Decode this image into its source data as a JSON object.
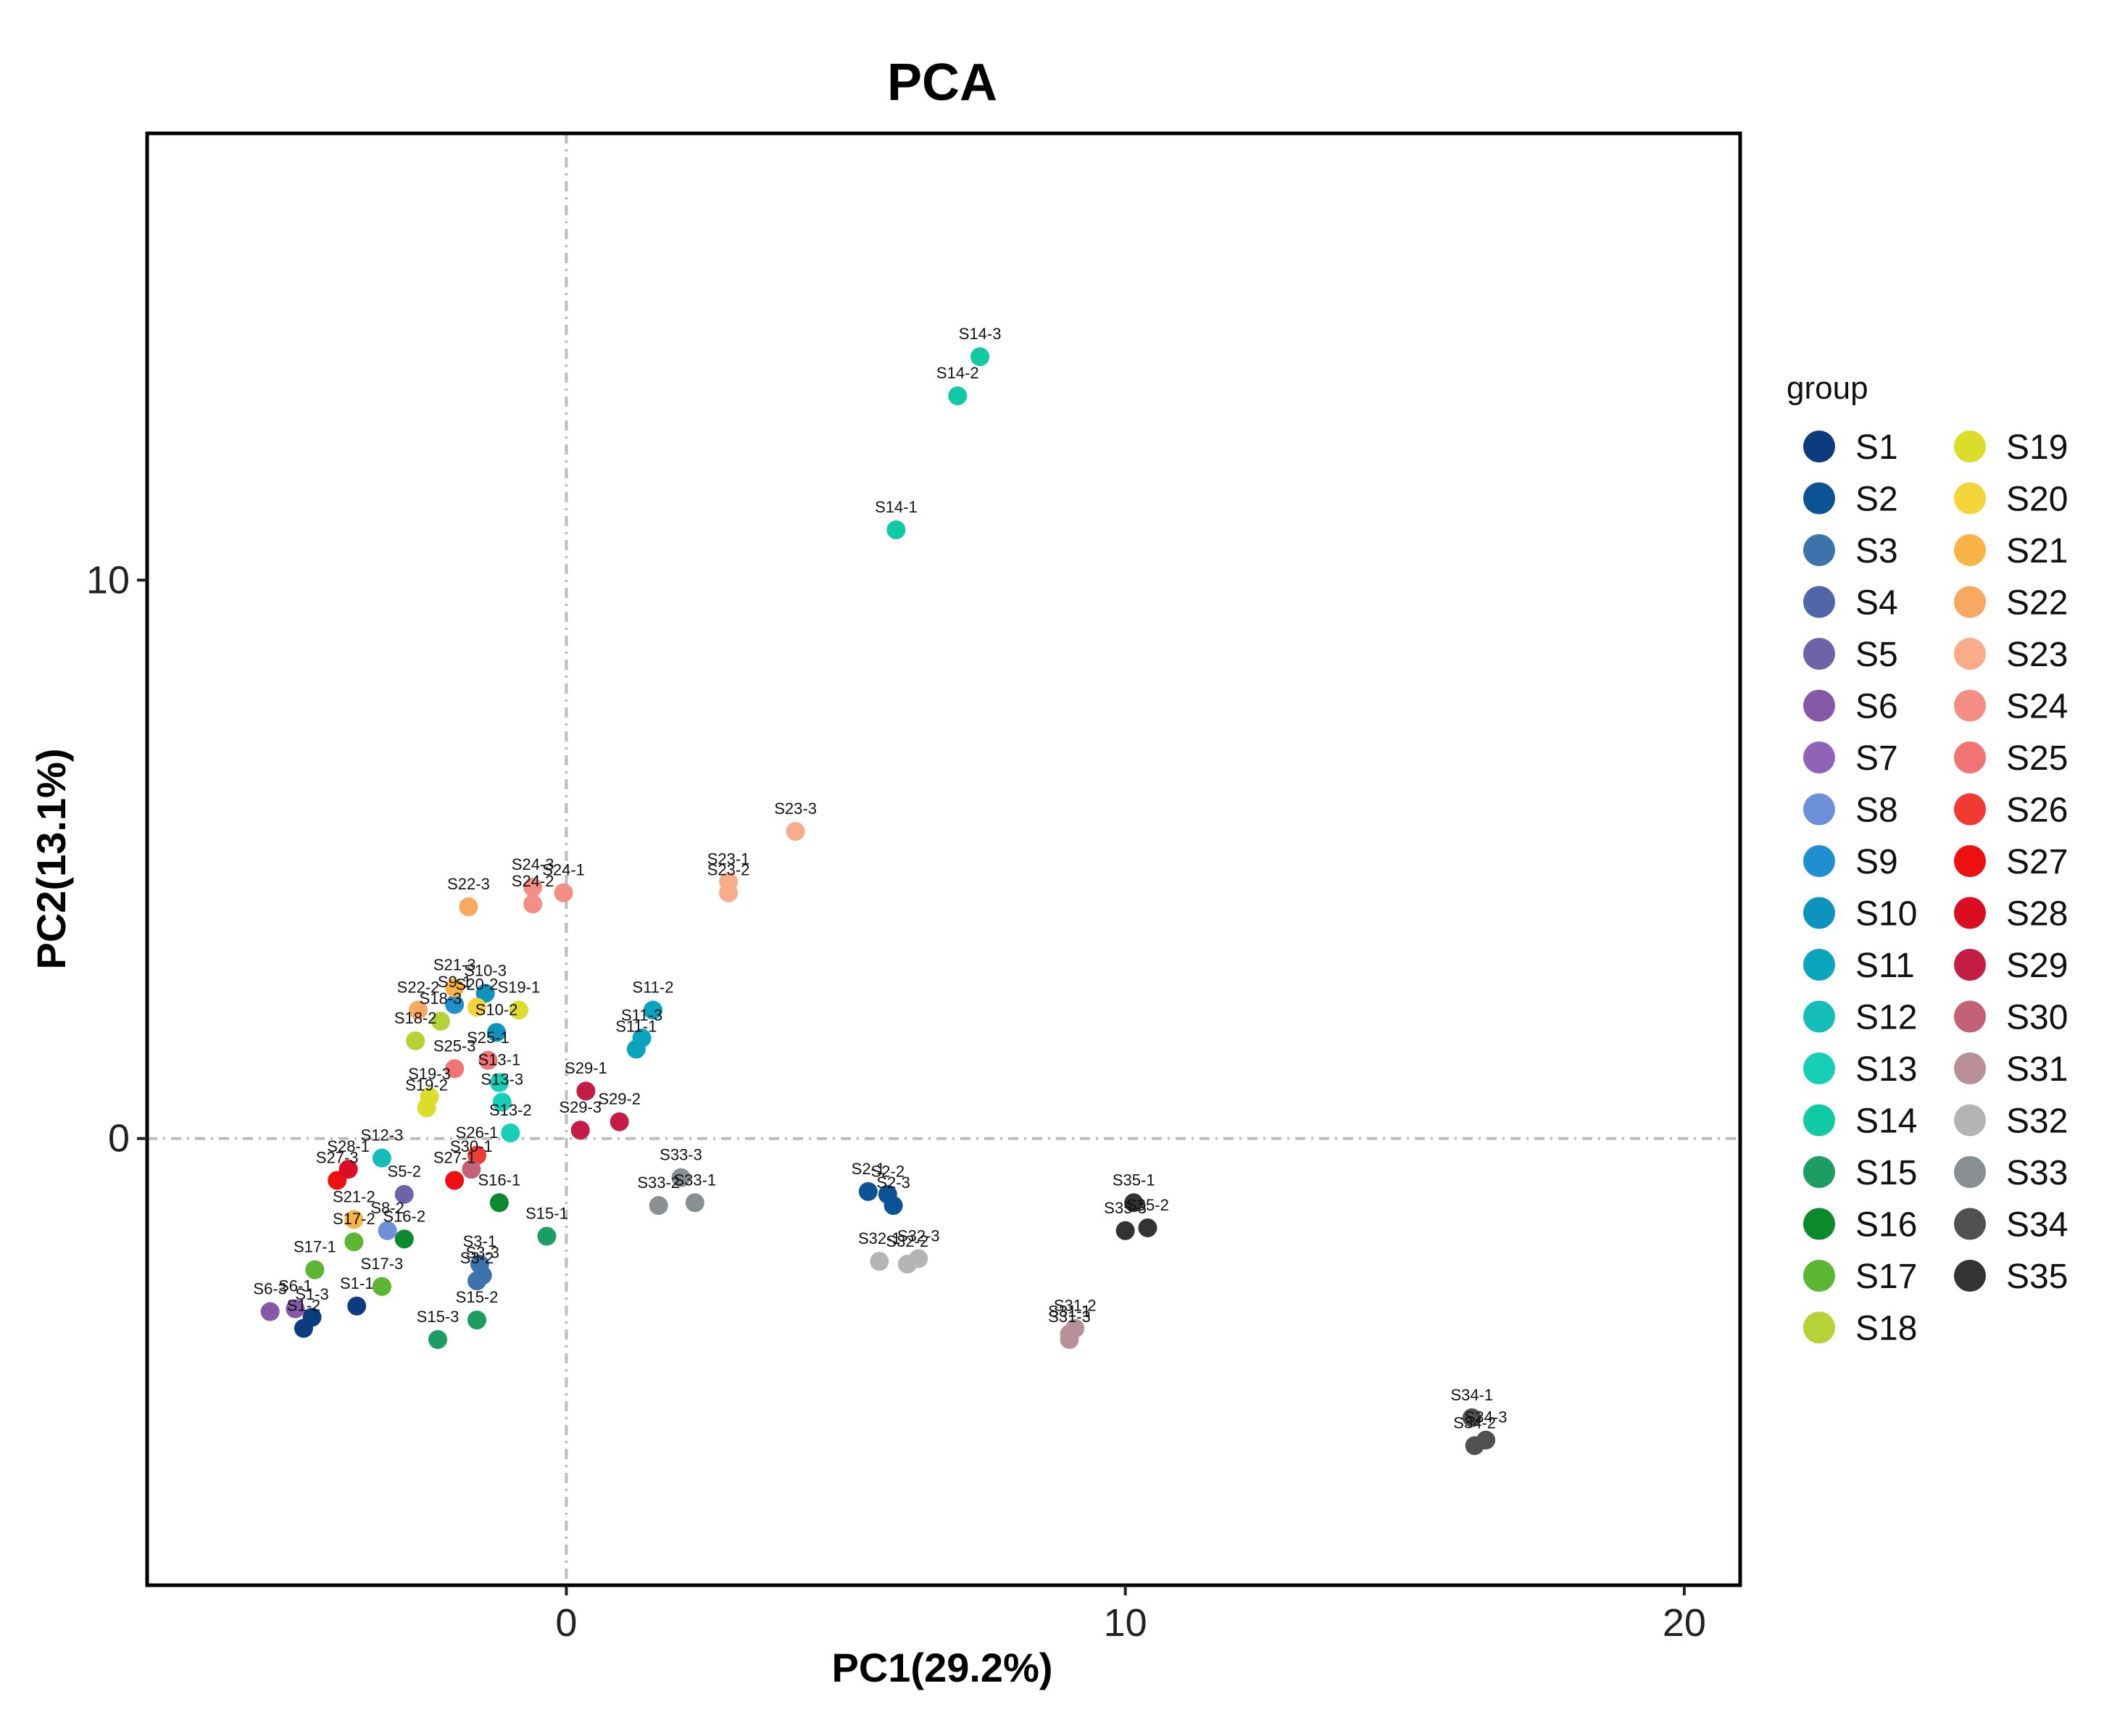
{
  "chart_data": {
    "type": "scatter",
    "title": "PCA",
    "xlabel": "PC1(29.2%)",
    "ylabel": "PC2(13.1%)",
    "xlim": [
      -7.5,
      21
    ],
    "ylim": [
      -8,
      18
    ],
    "xticks": [
      0,
      10,
      20
    ],
    "yticks": [
      0,
      10
    ],
    "reference_lines": {
      "x": 0,
      "y": 0,
      "style": "dot-dash"
    },
    "legend": {
      "title": "group",
      "position": "right",
      "groups": [
        {
          "name": "S1",
          "color": "#0d3c7e"
        },
        {
          "name": "S2",
          "color": "#0b5394"
        },
        {
          "name": "S3",
          "color": "#3d72ad"
        },
        {
          "name": "S4",
          "color": "#5066a8"
        },
        {
          "name": "S5",
          "color": "#6f63a8"
        },
        {
          "name": "S6",
          "color": "#8559a8"
        },
        {
          "name": "S7",
          "color": "#9063b8"
        },
        {
          "name": "S8",
          "color": "#6e90d8"
        },
        {
          "name": "S9",
          "color": "#1f8fd0"
        },
        {
          "name": "S10",
          "color": "#0e93bd"
        },
        {
          "name": "S11",
          "color": "#0aa5bd"
        },
        {
          "name": "S12",
          "color": "#14bdb8"
        },
        {
          "name": "S13",
          "color": "#16cfb6"
        },
        {
          "name": "S14",
          "color": "#11c9a2"
        },
        {
          "name": "S15",
          "color": "#1d9d63"
        },
        {
          "name": "S16",
          "color": "#0a8a2c"
        },
        {
          "name": "S17",
          "color": "#5db534"
        },
        {
          "name": "S18",
          "color": "#b5d236"
        },
        {
          "name": "S19",
          "color": "#dcdc2a"
        },
        {
          "name": "S20",
          "color": "#f5d33b"
        },
        {
          "name": "S21",
          "color": "#f8b446"
        },
        {
          "name": "S22",
          "color": "#f8a860"
        },
        {
          "name": "S23",
          "color": "#f9ab8a"
        },
        {
          "name": "S24",
          "color": "#f48d83"
        },
        {
          "name": "S25",
          "color": "#f27373"
        },
        {
          "name": "S26",
          "color": "#f23a35"
        },
        {
          "name": "S27",
          "color": "#ee0f10"
        },
        {
          "name": "S28",
          "color": "#dc0d22"
        },
        {
          "name": "S29",
          "color": "#c31d45"
        },
        {
          "name": "S30",
          "color": "#c26178"
        },
        {
          "name": "S31",
          "color": "#b98f9a"
        },
        {
          "name": "S32",
          "color": "#b4b4b4"
        },
        {
          "name": "S33",
          "color": "#889091"
        },
        {
          "name": "S34",
          "color": "#505252"
        },
        {
          "name": "S35",
          "color": "#333333"
        }
      ]
    },
    "points": [
      {
        "label": "S14-3",
        "group": "S14",
        "x": 7.4,
        "y": 14.0
      },
      {
        "label": "S14-2",
        "group": "S14",
        "x": 7.0,
        "y": 13.3
      },
      {
        "label": "S14-1",
        "group": "S14",
        "x": 5.9,
        "y": 10.9
      },
      {
        "label": "S23-3",
        "group": "S23",
        "x": 4.1,
        "y": 5.5
      },
      {
        "label": "S23-1",
        "group": "S23",
        "x": 2.9,
        "y": 4.6
      },
      {
        "label": "S23-2",
        "group": "S23",
        "x": 2.9,
        "y": 4.4
      },
      {
        "label": "S24-3",
        "group": "S24",
        "x": -0.6,
        "y": 4.5
      },
      {
        "label": "S24-1",
        "group": "S24",
        "x": -0.05,
        "y": 4.4
      },
      {
        "label": "S24-2",
        "group": "S24",
        "x": -0.6,
        "y": 4.2
      },
      {
        "label": "S22-3",
        "group": "S22",
        "x": -1.75,
        "y": 4.15
      },
      {
        "label": "S11-2",
        "group": "S11",
        "x": 1.55,
        "y": 2.3
      },
      {
        "label": "S11-3",
        "group": "S11",
        "x": 1.35,
        "y": 1.8
      },
      {
        "label": "S11-1",
        "group": "S11",
        "x": 1.25,
        "y": 1.6
      },
      {
        "label": "S29-1",
        "group": "S29",
        "x": 0.35,
        "y": 0.85
      },
      {
        "label": "S29-2",
        "group": "S29",
        "x": 0.95,
        "y": 0.3
      },
      {
        "label": "S29-3",
        "group": "S29",
        "x": 0.25,
        "y": 0.15
      },
      {
        "label": "S19-1",
        "group": "S19",
        "x": -0.85,
        "y": 2.3
      },
      {
        "label": "S19-3",
        "group": "S19",
        "x": -2.45,
        "y": 0.75
      },
      {
        "label": "S19-2",
        "group": "S19",
        "x": -2.5,
        "y": 0.55
      },
      {
        "label": "S18-3",
        "group": "S18",
        "x": -2.25,
        "y": 2.1
      },
      {
        "label": "S18-2",
        "group": "S18",
        "x": -2.7,
        "y": 1.75
      },
      {
        "label": "S22-2",
        "group": "S22",
        "x": -2.65,
        "y": 2.3
      },
      {
        "label": "S10-3",
        "group": "S10",
        "x": -1.45,
        "y": 2.6
      },
      {
        "label": "S10-2",
        "group": "S10",
        "x": -1.25,
        "y": 1.9
      },
      {
        "label": "S9-1",
        "group": "S9",
        "x": -2.0,
        "y": 2.4
      },
      {
        "label": "S20-2",
        "group": "S20",
        "x": -1.6,
        "y": 2.35
      },
      {
        "label": "S21-3",
        "group": "S21",
        "x": -2.0,
        "y": 2.7
      },
      {
        "label": "S25-3",
        "group": "S25",
        "x": -2.0,
        "y": 1.25
      },
      {
        "label": "S25-1",
        "group": "S25",
        "x": -1.4,
        "y": 1.4
      },
      {
        "label": "S13-1",
        "group": "S13",
        "x": -1.2,
        "y": 1.0
      },
      {
        "label": "S13-3",
        "group": "S13",
        "x": -1.15,
        "y": 0.65
      },
      {
        "label": "S13-2",
        "group": "S13",
        "x": -1.0,
        "y": 0.1
      },
      {
        "label": "S16-1",
        "group": "S16",
        "x": -1.2,
        "y": -1.15
      },
      {
        "label": "S15-1",
        "group": "S15",
        "x": -0.35,
        "y": -1.75
      },
      {
        "label": "S3-1",
        "group": "S3",
        "x": -1.55,
        "y": -2.25
      },
      {
        "label": "S3-3",
        "group": "S3",
        "x": -1.5,
        "y": -2.45
      },
      {
        "label": "S3-2",
        "group": "S3",
        "x": -1.6,
        "y": -2.55
      },
      {
        "label": "S15-2",
        "group": "S15",
        "x": -1.6,
        "y": -3.25
      },
      {
        "label": "S15-3",
        "group": "S15",
        "x": -2.3,
        "y": -3.6
      },
      {
        "label": "S1-1",
        "group": "S1",
        "x": -3.75,
        "y": -3.0
      },
      {
        "label": "S1-3",
        "group": "S1",
        "x": -4.55,
        "y": -3.2
      },
      {
        "label": "S1-2",
        "group": "S1",
        "x": -4.7,
        "y": -3.4
      },
      {
        "label": "S6-3",
        "group": "S6",
        "x": -5.3,
        "y": -3.1
      },
      {
        "label": "S6-1",
        "group": "S6",
        "x": -4.85,
        "y": -3.05
      },
      {
        "label": "S17-1",
        "group": "S17",
        "x": -4.5,
        "y": -2.35
      },
      {
        "label": "S17-3",
        "group": "S17",
        "x": -3.3,
        "y": -2.65
      },
      {
        "label": "S17-2",
        "group": "S17",
        "x": -3.8,
        "y": -1.85
      },
      {
        "label": "S16-2",
        "group": "S16",
        "x": -2.9,
        "y": -1.8
      },
      {
        "label": "S8-2",
        "group": "S8",
        "x": -3.2,
        "y": -1.65
      },
      {
        "label": "S21-2",
        "group": "S21",
        "x": -3.8,
        "y": -1.45
      },
      {
        "label": "S27-3",
        "group": "S27",
        "x": -4.1,
        "y": -0.75
      },
      {
        "label": "S28-1",
        "group": "S28",
        "x": -3.9,
        "y": -0.55
      },
      {
        "label": "S12-3",
        "group": "S12",
        "x": -3.3,
        "y": -0.35
      },
      {
        "label": "S26-1",
        "group": "S26",
        "x": -1.6,
        "y": -0.3
      },
      {
        "label": "S27-1",
        "group": "S27",
        "x": -2.0,
        "y": -0.75
      },
      {
        "label": "S5-2",
        "group": "S5",
        "x": -2.9,
        "y": -1.0
      },
      {
        "label": "S30-1",
        "group": "S30",
        "x": -1.7,
        "y": -0.55
      },
      {
        "label": "S2-1",
        "group": "S2",
        "x": 5.4,
        "y": -0.95
      },
      {
        "label": "S2-2",
        "group": "S2",
        "x": 5.75,
        "y": -1.0
      },
      {
        "label": "S2-3",
        "group": "S2",
        "x": 5.85,
        "y": -1.2
      },
      {
        "label": "S33-3",
        "group": "S33",
        "x": 2.05,
        "y": -0.7
      },
      {
        "label": "S33-2",
        "group": "S33",
        "x": 1.65,
        "y": -1.2
      },
      {
        "label": "S33-1",
        "group": "S33",
        "x": 2.3,
        "y": -1.15
      },
      {
        "label": "S32-1",
        "group": "S32",
        "x": 5.6,
        "y": -2.2
      },
      {
        "label": "S32-3",
        "group": "S32",
        "x": 6.3,
        "y": -2.15
      },
      {
        "label": "S32-2",
        "group": "S32",
        "x": 6.1,
        "y": -2.25
      },
      {
        "label": "S35-1",
        "group": "S35",
        "x": 10.15,
        "y": -1.15
      },
      {
        "label": "S35-2",
        "group": "S35",
        "x": 10.4,
        "y": -1.6
      },
      {
        "label": "S35-3",
        "group": "S35",
        "x": 10.0,
        "y": -1.65
      },
      {
        "label": "S31-2",
        "group": "S31",
        "x": 9.1,
        "y": -3.4
      },
      {
        "label": "S31-1",
        "group": "S31",
        "x": 9.0,
        "y": -3.5
      },
      {
        "label": "S31-3",
        "group": "S31",
        "x": 9.0,
        "y": -3.6
      },
      {
        "label": "S34-1",
        "group": "S34",
        "x": 16.2,
        "y": -5.0
      },
      {
        "label": "S34-3",
        "group": "S34",
        "x": 16.45,
        "y": -5.4
      },
      {
        "label": "S34-2",
        "group": "S34",
        "x": 16.25,
        "y": -5.5
      }
    ]
  }
}
